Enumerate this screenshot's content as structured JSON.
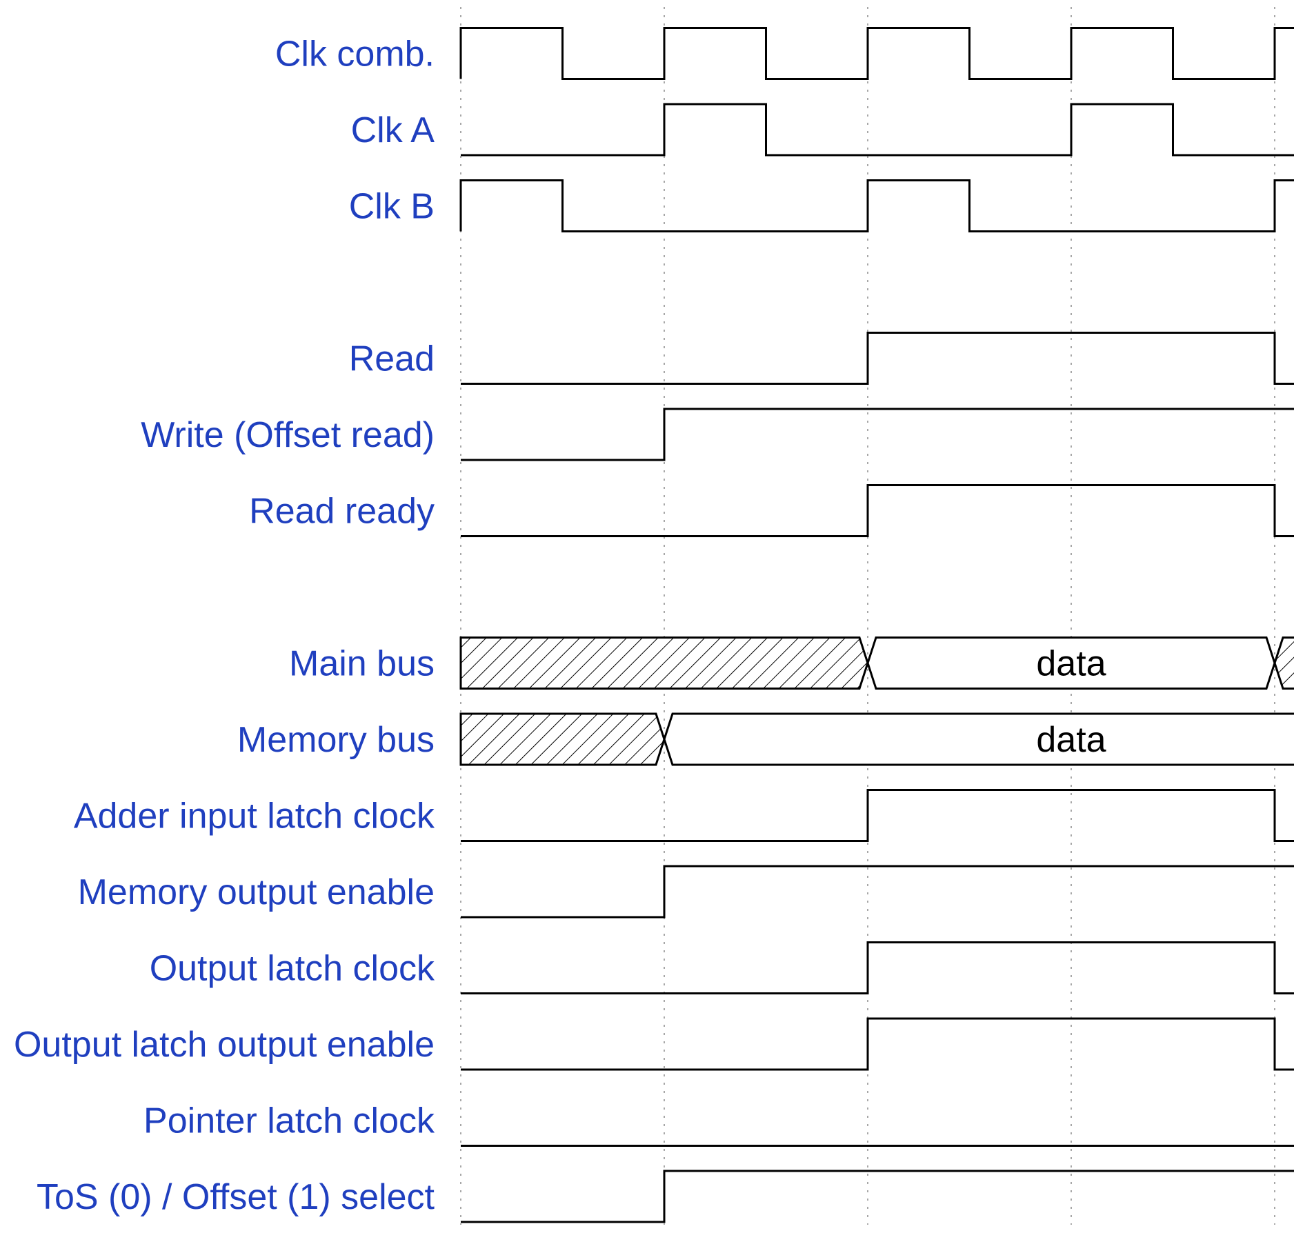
{
  "diagram": {
    "type": "timing-diagram",
    "periods": 8,
    "colors": {
      "label": "#1f3fbf",
      "wave": "#000000",
      "grid": "#8a8a8a"
    },
    "signals": [
      {
        "name": "Clk comb.",
        "kind": "digital",
        "levels": "1010101010101010"
      },
      {
        "name": "Clk A",
        "kind": "digital",
        "levels": "0010001000100010"
      },
      {
        "name": "Clk B",
        "kind": "digital",
        "levels": "1000100010001000"
      },
      {
        "name": "",
        "kind": "gap"
      },
      {
        "name": "Read",
        "kind": "digital",
        "levels": "0000111100000000"
      },
      {
        "name": "Write (Offset read)",
        "kind": "digital",
        "levels": "0011111111000000"
      },
      {
        "name": "Read ready",
        "kind": "digital",
        "levels": "0000111100000000"
      },
      {
        "name": "",
        "kind": "gap"
      },
      {
        "name": "Main bus",
        "kind": "bus",
        "segments": [
          {
            "from": 0,
            "to": 4,
            "state": "undefined"
          },
          {
            "from": 4,
            "to": 8,
            "state": "valid",
            "label": "data"
          },
          {
            "from": 8,
            "to": 16,
            "state": "undefined"
          }
        ]
      },
      {
        "name": "Memory bus",
        "kind": "bus",
        "segments": [
          {
            "from": 0,
            "to": 2,
            "state": "undefined"
          },
          {
            "from": 2,
            "to": 10,
            "state": "valid",
            "label": "data"
          },
          {
            "from": 10,
            "to": 16,
            "state": "undefined"
          }
        ]
      },
      {
        "name": "Adder input latch clock",
        "kind": "digital",
        "levels": "0000111100000000"
      },
      {
        "name": "Memory output enable",
        "kind": "digital",
        "levels": "0011111111000000"
      },
      {
        "name": "Output latch clock",
        "kind": "digital",
        "levels": "0000111100000000"
      },
      {
        "name": "Output latch output enable",
        "kind": "digital",
        "levels": "0000111100000000"
      },
      {
        "name": "Pointer latch clock",
        "kind": "digital",
        "levels": "0000000000000000"
      },
      {
        "name": "ToS (0) / Offset (1) select",
        "kind": "digital",
        "levels": "0011111111000000"
      }
    ]
  }
}
